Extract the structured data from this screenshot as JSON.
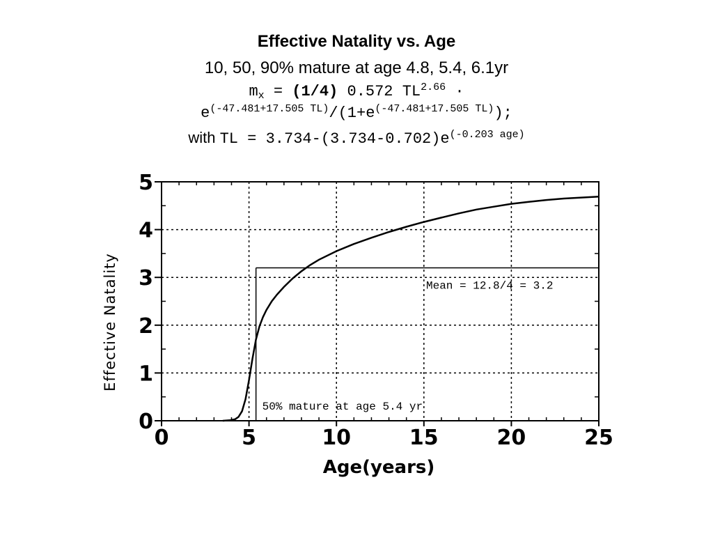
{
  "title": "Effective Natality vs. Age",
  "subtitle": "10, 50, 90% mature at age 4.8, 5.4, 6.1yr",
  "formula": {
    "line1_m": "m",
    "line1_sub": "x",
    "line1_eq": " = ",
    "line1_coef": "(1/4)",
    "line1_rest": " 0.572 TL",
    "line1_sup": "2.66",
    "line1_dot": " ·",
    "line2_e1": "e",
    "line2_sup1": "(-47.481+17.505 TL)",
    "line2_mid": "/(1+e",
    "line2_sup2": "(-47.481+17.505 TL)",
    "line2_end": ");",
    "line3_with": "with ",
    "line3_expr": "TL = 3.734-(3.734-0.702)e",
    "line3_sup": "(-0.203 age)"
  },
  "chart_data": {
    "type": "line",
    "xlabel": "Age(years)",
    "ylabel": "Effective Natality",
    "xlim": [
      0,
      25
    ],
    "ylim": [
      0,
      5
    ],
    "x_ticks": [
      "0",
      "5",
      "10",
      "15",
      "20",
      "25"
    ],
    "y_ticks": [
      "0",
      "1",
      "2",
      "3",
      "4",
      "5"
    ],
    "grid": true,
    "series": [
      {
        "x": [
          3.5,
          3.9,
          4.2,
          4.4,
          4.6,
          4.8,
          5.0,
          5.2,
          5.4,
          5.6,
          5.8,
          6.0,
          6.3,
          6.6,
          7.0,
          7.5,
          8.0,
          8.5,
          9.0,
          10.0,
          11.0,
          12.0,
          13.0,
          14.0,
          15.0,
          16.0,
          17.0,
          18.0,
          19.0,
          20.0,
          21.0,
          22.0,
          23.0,
          24.0,
          25.0
        ],
        "values": [
          0.0,
          0.01,
          0.03,
          0.08,
          0.2,
          0.45,
          0.85,
          1.3,
          1.7,
          1.98,
          2.17,
          2.32,
          2.5,
          2.64,
          2.8,
          2.98,
          3.13,
          3.26,
          3.37,
          3.55,
          3.7,
          3.83,
          3.95,
          4.06,
          4.16,
          4.25,
          4.34,
          4.42,
          4.48,
          4.54,
          4.58,
          4.62,
          4.65,
          4.67,
          4.69
        ]
      }
    ],
    "mean_line": {
      "value": 3.2,
      "label": "Mean = 12.8/4 = 3.2"
    },
    "maturity_line": {
      "age": 5.4,
      "label": "50% mature at age 5.4 yr"
    }
  }
}
